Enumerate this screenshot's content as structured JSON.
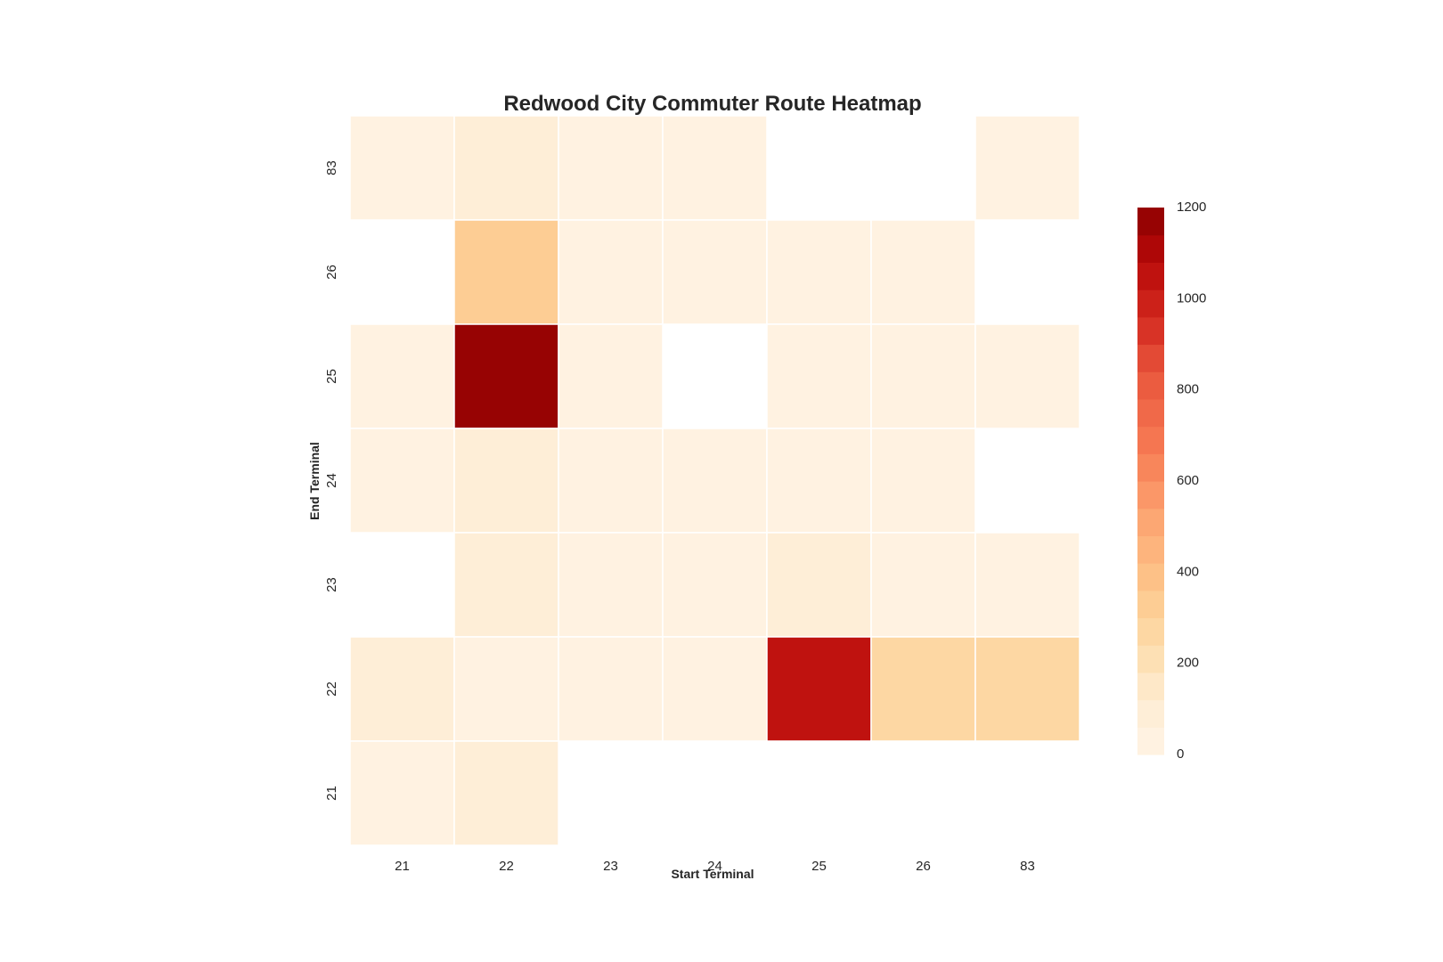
{
  "chart_data": {
    "type": "heatmap",
    "title": "Redwood City Commuter Route Heatmap",
    "xlabel": "Start Terminal",
    "ylabel": "End Terminal",
    "x_categories": [
      "21",
      "22",
      "23",
      "24",
      "25",
      "26",
      "83"
    ],
    "y_categories": [
      "83",
      "26",
      "25",
      "24",
      "23",
      "22",
      "21"
    ],
    "values": [
      [
        20,
        110,
        20,
        20,
        null,
        null,
        20
      ],
      [
        null,
        340,
        30,
        40,
        30,
        30,
        null
      ],
      [
        20,
        1200,
        20,
        null,
        30,
        40,
        30
      ],
      [
        30,
        90,
        40,
        40,
        40,
        30,
        null
      ],
      [
        null,
        90,
        50,
        40,
        100,
        40,
        30
      ],
      [
        90,
        30,
        30,
        30,
        1030,
        240,
        240
      ],
      [
        30,
        110,
        null,
        null,
        null,
        null,
        null
      ]
    ],
    "colorbar": {
      "min": 0,
      "max": 1200,
      "ticks": [
        "0",
        "200",
        "400",
        "600",
        "800",
        "1000",
        "1200"
      ],
      "levels": 20
    },
    "colormap": [
      "#fff5eb",
      "#fee6ce",
      "#fdd0a2",
      "#fdae6b",
      "#fd8d3c",
      "#f16913",
      "#d94801",
      "#a63603",
      "#7f2704"
    ],
    "colormap_reds": [
      "#fff1e3",
      "#fdd7a8",
      "#fdb880",
      "#fc8b59",
      "#ef6548",
      "#d7301f",
      "#b30000",
      "#8b0000"
    ],
    "grid_line_color": "#ffffff"
  }
}
